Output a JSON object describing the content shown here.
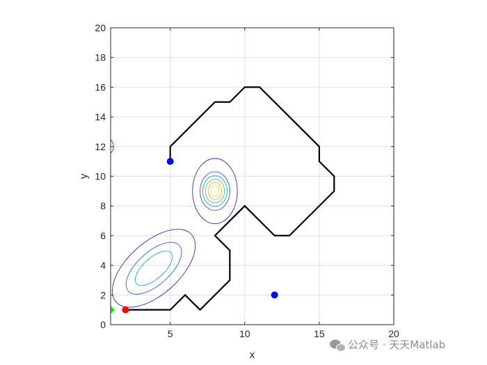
{
  "chart_data": {
    "type": "line",
    "xlabel": "x",
    "ylabel": "y",
    "xlim": [
      1,
      20
    ],
    "ylim": [
      0,
      20
    ],
    "x_ticks": [
      5,
      10,
      15,
      20
    ],
    "y_ticks": [
      0,
      2,
      4,
      6,
      8,
      10,
      12,
      14,
      16,
      18,
      20
    ],
    "grid": true,
    "aspect": "equal",
    "series": [
      {
        "kind": "path",
        "color": "#000000",
        "x": [
          2,
          5,
          6,
          7,
          9,
          9,
          8,
          10,
          12,
          13,
          16,
          16,
          15,
          15,
          11,
          10,
          9,
          8,
          5,
          5
        ],
        "y": [
          1,
          1,
          2,
          1,
          3,
          5,
          6,
          8,
          6,
          6,
          9,
          10,
          11,
          12,
          16,
          16,
          15,
          15,
          12,
          11
        ]
      },
      {
        "kind": "start_point",
        "color": "#ff0000",
        "x": [
          2
        ],
        "y": [
          1
        ]
      },
      {
        "kind": "goal_point",
        "color": "#00ff00",
        "x": [
          1
        ],
        "y": [
          1
        ]
      },
      {
        "kind": "points",
        "color": "#0000ff",
        "x": [
          5,
          12
        ],
        "y": [
          11,
          2
        ]
      }
    ],
    "contours": {
      "colormap": [
        "#3d26a8",
        "#2f5cd5",
        "#1aa2c8",
        "#3ec58f",
        "#c6bc3f",
        "#f9d529"
      ],
      "peaks": [
        {
          "x": 8,
          "y": 9,
          "rings": [
            [
              1.5,
              2.2
            ],
            [
              1.0,
              1.3
            ],
            [
              0.82,
              1.03
            ],
            [
              0.64,
              0.8
            ],
            [
              0.45,
              0.58
            ],
            [
              0.28,
              0.38
            ]
          ]
        },
        {
          "x": 3.9,
          "y": 3.8,
          "tilt_deg": 42,
          "rings": [
            [
              3.4,
              1.75
            ],
            [
              2.3,
              1.1
            ],
            [
              1.55,
              0.7
            ]
          ]
        },
        {
          "x": 0.6,
          "y": 12,
          "rings": [
            [
              0.6,
              0.6
            ]
          ]
        }
      ]
    }
  },
  "watermark": {
    "text": "公众号 · 天天Matlab"
  }
}
